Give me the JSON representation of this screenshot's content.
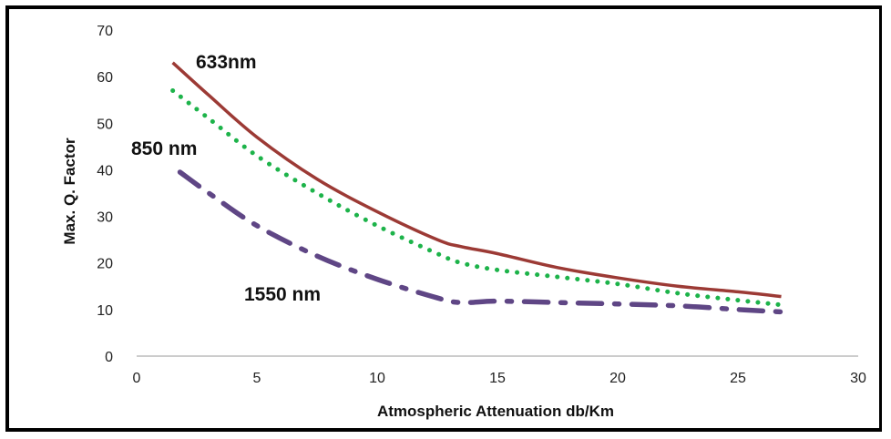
{
  "chart_data": {
    "type": "line",
    "title": "",
    "xlabel": "Atmospheric Attenuation db/Km",
    "ylabel": "Max. Q. Factor",
    "xlim": [
      0,
      30
    ],
    "ylim": [
      0,
      70
    ],
    "x_ticks": [
      "0",
      "5",
      "10",
      "15",
      "20",
      "25",
      "30"
    ],
    "y_ticks": [
      "0",
      "10",
      "20",
      "30",
      "40",
      "50",
      "60",
      "70"
    ],
    "grid": false,
    "legend": "none",
    "series": [
      {
        "name": "633nm",
        "color": "#9c3a35",
        "style": "solid",
        "x": [
          1.5,
          3,
          5,
          7.5,
          10,
          12.5,
          13.5,
          15,
          17.5,
          20,
          22.5,
          25,
          26.8
        ],
        "y": [
          63,
          56,
          47,
          38,
          31,
          25,
          23.5,
          22,
          19,
          16.8,
          15,
          13.8,
          12.8
        ]
      },
      {
        "name": "850 nm",
        "color": "#1db34a",
        "style": "dotted",
        "x": [
          1.5,
          3,
          5,
          7.5,
          10,
          12.5,
          13.5,
          15,
          17.5,
          20,
          22.5,
          25,
          26.8
        ],
        "y": [
          57,
          51,
          43,
          35,
          28,
          22,
          20,
          18.5,
          17,
          15.5,
          13.5,
          12,
          11
        ]
      },
      {
        "name": "1550 nm",
        "color": "#5f4685",
        "style": "dashdot",
        "x": [
          1.8,
          3,
          5,
          7.5,
          10,
          12.5,
          13.5,
          15,
          17.5,
          20,
          22.5,
          25,
          26.8
        ],
        "y": [
          39.5,
          35,
          28,
          21.5,
          16.5,
          12.5,
          11.5,
          11.8,
          11.5,
          11.2,
          10.8,
          10,
          9.5
        ]
      }
    ]
  }
}
